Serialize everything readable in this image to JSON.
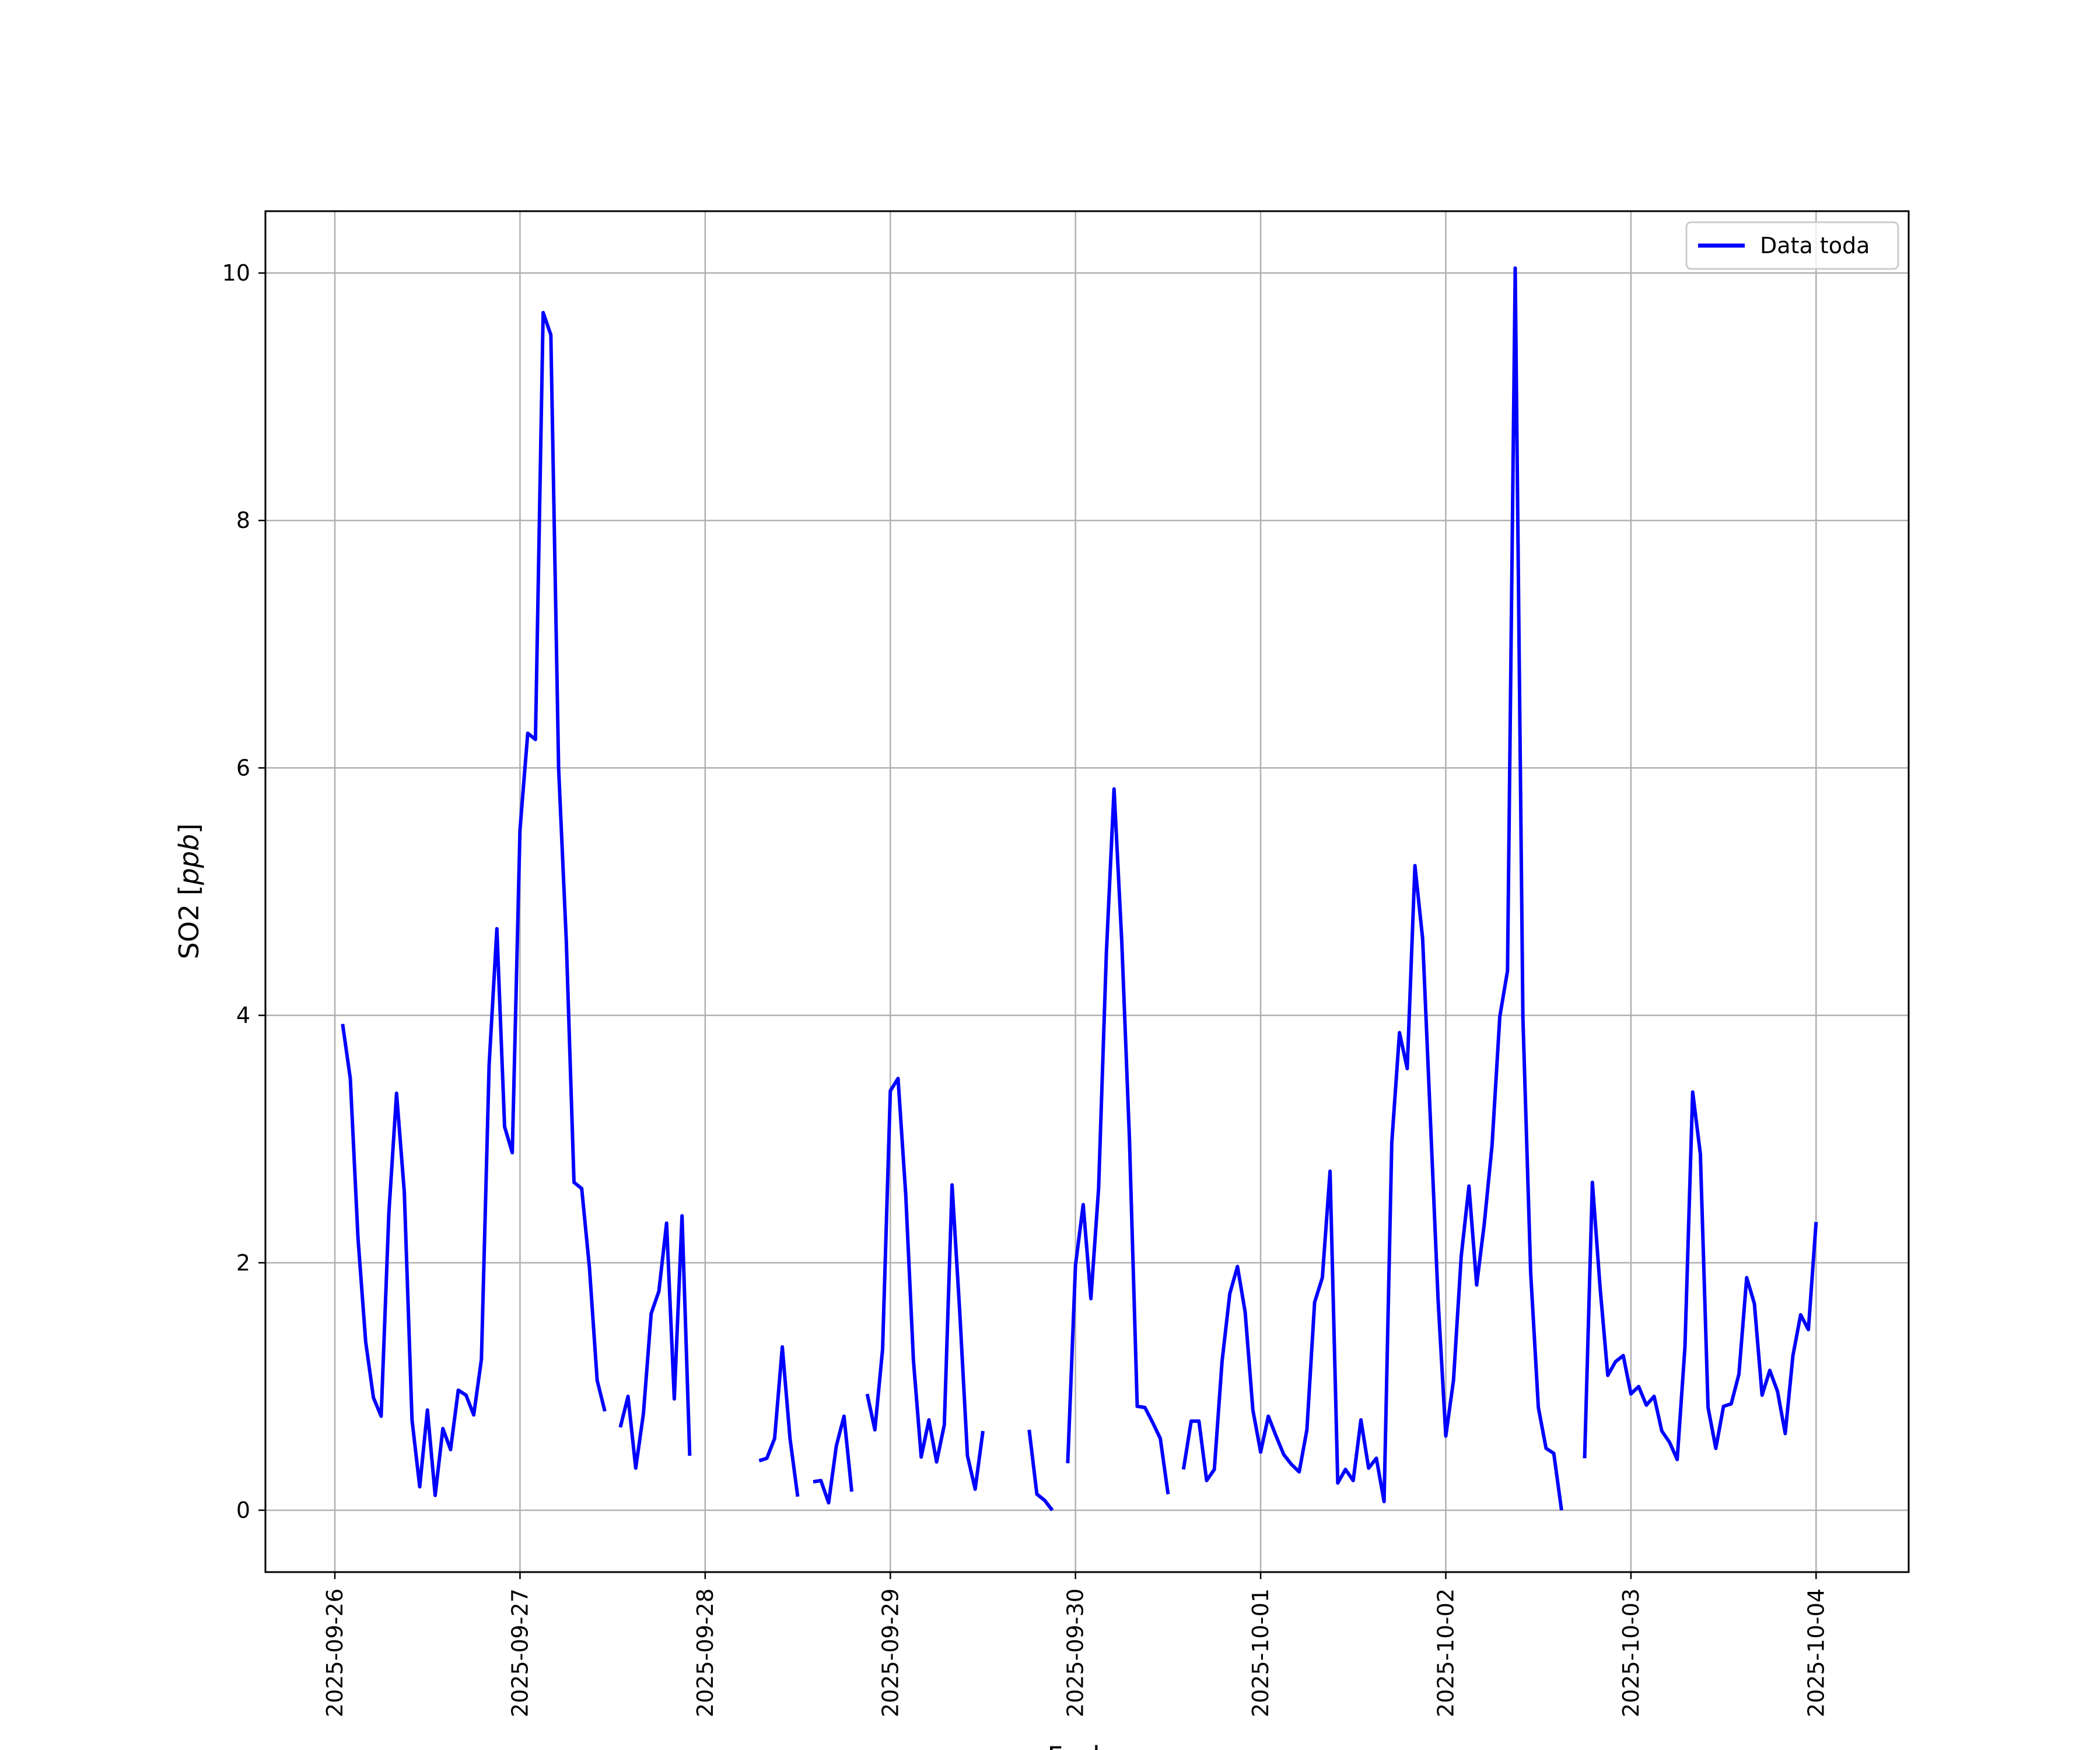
{
  "chart_data": {
    "type": "line",
    "title": "",
    "xlabel": "Fecha",
    "ylabel_main": "SO2 [",
    "ylabel_unit": "ppb",
    "ylabel_close": "]",
    "xlim": [
      "2025-09-25 15:00",
      "2025-10-04 12:00"
    ],
    "ylim": [
      -0.5,
      10.5
    ],
    "yticks": [
      0,
      2,
      4,
      6,
      8,
      10
    ],
    "ytick_labels": [
      "0",
      "2",
      "4",
      "6",
      "8",
      "10"
    ],
    "xticks": [
      "2025-09-26",
      "2025-09-27",
      "2025-09-28",
      "2025-09-29",
      "2025-09-30",
      "2025-10-01",
      "2025-10-02",
      "2025-10-03",
      "2025-10-04"
    ],
    "xtick_labels": [
      "2025-09-26",
      "2025-09-27",
      "2025-09-28",
      "2025-09-29",
      "2025-09-30",
      "2025-10-01",
      "2025-10-02",
      "2025-10-03",
      "2025-10-04"
    ],
    "grid": true,
    "legend_position": "top-right",
    "series": [
      {
        "name": "Data toda",
        "color": "#0000ff",
        "points": [
          [
            "2025-09-26 01:00",
            3.93
          ],
          [
            "2025-09-26 02:00",
            3.49
          ],
          [
            "2025-09-26 03:00",
            2.2
          ],
          [
            "2025-09-26 04:00",
            1.36
          ],
          [
            "2025-09-26 05:00",
            0.91
          ],
          [
            "2025-09-26 06:00",
            0.76
          ],
          [
            "2025-09-26 07:00",
            2.4
          ],
          [
            "2025-09-26 08:00",
            3.37
          ],
          [
            "2025-09-26 09:00",
            2.57
          ],
          [
            "2025-09-26 10:00",
            0.73
          ],
          [
            "2025-09-26 11:00",
            0.19
          ],
          [
            "2025-09-26 12:00",
            0.81
          ],
          [
            "2025-09-26 13:00",
            0.12
          ],
          [
            "2025-09-26 14:00",
            0.66
          ],
          [
            "2025-09-26 15:00",
            0.49
          ],
          [
            "2025-09-26 16:00",
            0.97
          ],
          [
            "2025-09-26 17:00",
            0.93
          ],
          [
            "2025-09-26 18:00",
            0.77
          ],
          [
            "2025-09-26 19:00",
            1.22
          ],
          [
            "2025-09-26 20:00",
            3.6
          ],
          [
            "2025-09-26 21:00",
            4.7
          ],
          [
            "2025-09-26 22:00",
            3.1
          ],
          [
            "2025-09-26 23:00",
            2.89
          ],
          [
            "2025-09-27 00:00",
            5.5
          ],
          [
            "2025-09-27 01:00",
            6.28
          ],
          [
            "2025-09-27 02:00",
            6.23
          ],
          [
            "2025-09-27 03:00",
            9.68
          ],
          [
            "2025-09-27 04:00",
            9.5
          ],
          [
            "2025-09-27 05:00",
            6.0
          ],
          [
            "2025-09-27 06:00",
            4.6
          ],
          [
            "2025-09-27 07:00",
            2.65
          ],
          [
            "2025-09-27 08:00",
            2.6
          ],
          [
            "2025-09-27 09:00",
            1.96
          ],
          [
            "2025-09-27 10:00",
            1.05
          ],
          [
            "2025-09-27 11:00",
            0.8
          ],
          [
            "2025-09-27 12:00",
            null
          ],
          [
            "2025-09-27 13:00",
            0.67
          ],
          [
            "2025-09-27 14:00",
            0.92
          ],
          [
            "2025-09-27 15:00",
            0.34
          ],
          [
            "2025-09-27 16:00",
            0.78
          ],
          [
            "2025-09-27 17:00",
            1.59
          ],
          [
            "2025-09-27 18:00",
            1.77
          ],
          [
            "2025-09-27 19:00",
            2.32
          ],
          [
            "2025-09-27 20:00",
            0.9
          ],
          [
            "2025-09-27 21:00",
            2.38
          ],
          [
            "2025-09-27 22:00",
            0.44
          ],
          [
            "2025-09-27 23:00",
            null
          ],
          [
            "2025-09-28 07:00",
            0.4
          ],
          [
            "2025-09-28 08:00",
            0.42
          ],
          [
            "2025-09-28 09:00",
            0.58
          ],
          [
            "2025-09-28 10:00",
            1.32
          ],
          [
            "2025-09-28 11:00",
            0.58
          ],
          [
            "2025-09-28 12:00",
            0.11
          ],
          [
            "2025-09-28 13:00",
            null
          ],
          [
            "2025-09-28 14:00",
            0.23
          ],
          [
            "2025-09-28 15:00",
            0.24
          ],
          [
            "2025-09-28 16:00",
            0.06
          ],
          [
            "2025-09-28 17:00",
            0.52
          ],
          [
            "2025-09-28 18:00",
            0.76
          ],
          [
            "2025-09-28 19:00",
            0.15
          ],
          [
            "2025-09-28 20:00",
            null
          ],
          [
            "2025-09-28 21:00",
            0.94
          ],
          [
            "2025-09-28 22:00",
            0.65
          ],
          [
            "2025-09-28 23:00",
            1.3
          ],
          [
            "2025-09-29 00:00",
            3.39
          ],
          [
            "2025-09-29 01:00",
            3.49
          ],
          [
            "2025-09-29 02:00",
            2.55
          ],
          [
            "2025-09-29 03:00",
            1.21
          ],
          [
            "2025-09-29 04:00",
            0.43
          ],
          [
            "2025-09-29 05:00",
            0.73
          ],
          [
            "2025-09-29 06:00",
            0.39
          ],
          [
            "2025-09-29 07:00",
            0.69
          ],
          [
            "2025-09-29 08:00",
            2.63
          ],
          [
            "2025-09-29 09:00",
            1.6
          ],
          [
            "2025-09-29 10:00",
            0.44
          ],
          [
            "2025-09-29 11:00",
            0.17
          ],
          [
            "2025-09-29 12:00",
            0.64
          ],
          [
            "2025-09-29 13:00",
            null
          ],
          [
            "2025-09-29 18:00",
            0.65
          ],
          [
            "2025-09-29 19:00",
            0.13
          ],
          [
            "2025-09-29 20:00",
            0.08
          ],
          [
            "2025-09-29 21:00",
            0.0
          ],
          [
            "2025-09-29 22:00",
            null
          ],
          [
            "2025-09-29 23:00",
            0.38
          ],
          [
            "2025-09-30 00:00",
            1.98
          ],
          [
            "2025-09-30 01:00",
            2.47
          ],
          [
            "2025-09-30 02:00",
            1.71
          ],
          [
            "2025-09-30 03:00",
            2.6
          ],
          [
            "2025-09-30 04:00",
            4.5
          ],
          [
            "2025-09-30 05:00",
            5.83
          ],
          [
            "2025-09-30 06:00",
            4.6
          ],
          [
            "2025-09-30 07:00",
            3.0
          ],
          [
            "2025-09-30 08:00",
            0.84
          ],
          [
            "2025-09-30 09:00",
            0.83
          ],
          [
            "2025-09-30 10:00",
            0.71
          ],
          [
            "2025-09-30 11:00",
            0.58
          ],
          [
            "2025-09-30 12:00",
            0.13
          ],
          [
            "2025-09-30 13:00",
            null
          ],
          [
            "2025-09-30 14:00",
            0.33
          ],
          [
            "2025-09-30 15:00",
            0.72
          ],
          [
            "2025-09-30 16:00",
            0.72
          ],
          [
            "2025-09-30 17:00",
            0.24
          ],
          [
            "2025-09-30 18:00",
            0.33
          ],
          [
            "2025-09-30 19:00",
            1.2
          ],
          [
            "2025-09-30 20:00",
            1.75
          ],
          [
            "2025-09-30 21:00",
            1.97
          ],
          [
            "2025-09-30 22:00",
            1.6
          ],
          [
            "2025-09-30 23:00",
            0.81
          ],
          [
            "2025-10-01 00:00",
            0.47
          ],
          [
            "2025-10-01 01:00",
            0.76
          ],
          [
            "2025-10-01 02:00",
            0.6
          ],
          [
            "2025-10-01 03:00",
            0.45
          ],
          [
            "2025-10-01 04:00",
            0.37
          ],
          [
            "2025-10-01 05:00",
            0.31
          ],
          [
            "2025-10-01 06:00",
            0.65
          ],
          [
            "2025-10-01 07:00",
            1.68
          ],
          [
            "2025-10-01 08:00",
            1.88
          ],
          [
            "2025-10-01 09:00",
            2.74
          ],
          [
            "2025-10-01 10:00",
            0.22
          ],
          [
            "2025-10-01 11:00",
            0.33
          ],
          [
            "2025-10-01 12:00",
            0.24
          ],
          [
            "2025-10-01 13:00",
            0.73
          ],
          [
            "2025-10-01 14:00",
            0.34
          ],
          [
            "2025-10-01 15:00",
            0.42
          ],
          [
            "2025-10-01 16:00",
            0.07
          ],
          [
            "2025-10-01 17:00",
            2.97
          ],
          [
            "2025-10-01 18:00",
            3.86
          ],
          [
            "2025-10-01 19:00",
            3.57
          ],
          [
            "2025-10-01 20:00",
            5.21
          ],
          [
            "2025-10-01 21:00",
            4.62
          ],
          [
            "2025-10-01 22:00",
            3.17
          ],
          [
            "2025-10-01 23:00",
            1.7
          ],
          [
            "2025-10-02 00:00",
            0.6
          ],
          [
            "2025-10-02 01:00",
            1.05
          ],
          [
            "2025-10-02 02:00",
            2.05
          ],
          [
            "2025-10-02 03:00",
            2.62
          ],
          [
            "2025-10-02 04:00",
            1.82
          ],
          [
            "2025-10-02 05:00",
            2.32
          ],
          [
            "2025-10-02 06:00",
            2.95
          ],
          [
            "2025-10-02 07:00",
            3.99
          ],
          [
            "2025-10-02 08:00",
            4.36
          ],
          [
            "2025-10-02 09:00",
            10.04
          ],
          [
            "2025-10-02 10:00",
            3.98
          ],
          [
            "2025-10-02 11:00",
            1.92
          ],
          [
            "2025-10-02 12:00",
            0.83
          ],
          [
            "2025-10-02 13:00",
            0.5
          ],
          [
            "2025-10-02 14:00",
            0.46
          ],
          [
            "2025-10-02 15:00",
            0.0
          ],
          [
            "2025-10-02 16:00",
            null
          ],
          [
            "2025-10-02 18:00",
            0.42
          ],
          [
            "2025-10-02 19:00",
            2.65
          ],
          [
            "2025-10-02 20:00",
            1.8
          ],
          [
            "2025-10-02 21:00",
            1.09
          ],
          [
            "2025-10-02 22:00",
            1.2
          ],
          [
            "2025-10-02 23:00",
            1.25
          ],
          [
            "2025-10-03 00:00",
            0.94
          ],
          [
            "2025-10-03 01:00",
            1.0
          ],
          [
            "2025-10-03 02:00",
            0.85
          ],
          [
            "2025-10-03 03:00",
            0.92
          ],
          [
            "2025-10-03 04:00",
            0.64
          ],
          [
            "2025-10-03 05:00",
            0.55
          ],
          [
            "2025-10-03 06:00",
            0.41
          ],
          [
            "2025-10-03 07:00",
            1.32
          ],
          [
            "2025-10-03 08:00",
            3.38
          ],
          [
            "2025-10-03 09:00",
            2.88
          ],
          [
            "2025-10-03 10:00",
            0.83
          ],
          [
            "2025-10-03 11:00",
            0.5
          ],
          [
            "2025-10-03 12:00",
            0.84
          ],
          [
            "2025-10-03 13:00",
            0.86
          ],
          [
            "2025-10-03 14:00",
            1.1
          ],
          [
            "2025-10-03 15:00",
            1.88
          ],
          [
            "2025-10-03 16:00",
            1.67
          ],
          [
            "2025-10-03 17:00",
            0.93
          ],
          [
            "2025-10-03 18:00",
            1.13
          ],
          [
            "2025-10-03 19:00",
            0.96
          ],
          [
            "2025-10-03 20:00",
            0.62
          ],
          [
            "2025-10-03 21:00",
            1.25
          ],
          [
            "2025-10-03 22:00",
            1.58
          ],
          [
            "2025-10-03 23:00",
            1.46
          ],
          [
            "2025-10-04 00:00",
            2.33
          ]
        ]
      }
    ]
  }
}
